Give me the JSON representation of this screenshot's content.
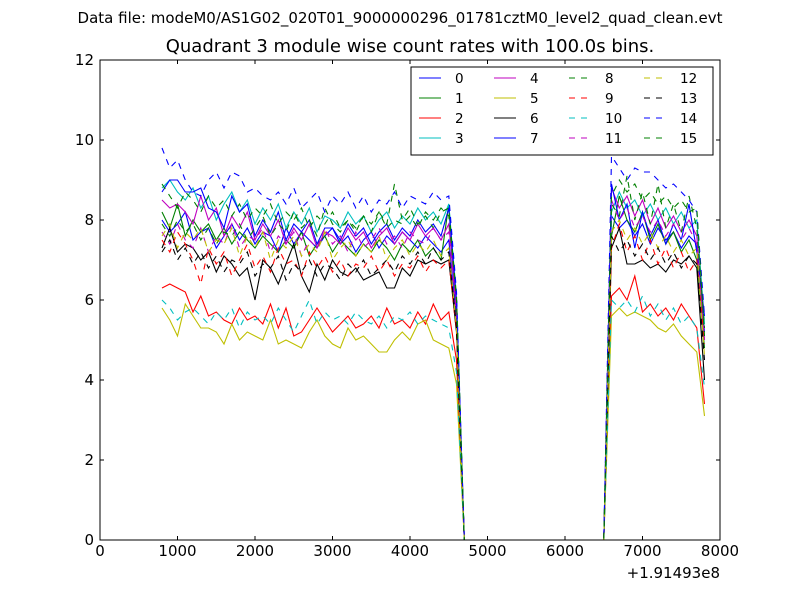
{
  "suptitle": "Data file: modeM0/AS1G02_020T01_9000000296_01781cztM0_level2_quad_clean.evt",
  "chart_data": {
    "type": "line",
    "title": "Quadrant 3 module wise count rates with 100.0s bins.",
    "xlabel": "",
    "ylabel": "",
    "x_offset_label": "+1.91493e8",
    "xlim": [
      0,
      8000
    ],
    "ylim": [
      0,
      12
    ],
    "xticks": [
      0,
      1000,
      2000,
      3000,
      4000,
      5000,
      6000,
      7000,
      8000
    ],
    "yticks": [
      0,
      2,
      4,
      6,
      8,
      10,
      12
    ],
    "legend_location": "upper right",
    "x_segment1": [
      800,
      900,
      1000,
      1100,
      1200,
      1300,
      1400,
      1500,
      1600,
      1700,
      1800,
      1900,
      2000,
      2100,
      2200,
      2300,
      2400,
      2500,
      2600,
      2700,
      2800,
      2900,
      3000,
      3100,
      3200,
      3300,
      3400,
      3500,
      3600,
      3700,
      3800,
      3900,
      4000,
      4100,
      4200,
      4300,
      4400,
      4500,
      4600,
      4700
    ],
    "x_gap": [
      5000,
      6000,
      6400
    ],
    "x_segment2": [
      6500,
      6600,
      6700,
      6800,
      6900,
      7000,
      7100,
      7200,
      7300,
      7400,
      7500,
      7600,
      7700,
      7800
    ],
    "series": [
      {
        "name": "0",
        "color": "#0000ff",
        "dash": "solid",
        "seg1": [
          8.0,
          7.7,
          7.9,
          8.2,
          7.5,
          7.7,
          7.8,
          7.3,
          7.6,
          7.9,
          7.5,
          7.8,
          7.4,
          7.7,
          7.6,
          7.2,
          7.8,
          7.4,
          7.7,
          7.5,
          7.3,
          7.6,
          7.8,
          7.4,
          7.6,
          7.2,
          7.5,
          7.7,
          7.3,
          7.6,
          7.4,
          7.7,
          7.5,
          7.3,
          7.6,
          7.4,
          7.2,
          7.5,
          5.5,
          0.0
        ],
        "seg2": [
          0.0,
          8.1,
          7.8,
          8.0,
          7.6,
          7.9,
          7.4,
          7.8,
          7.5,
          7.7,
          7.3,
          7.6,
          7.4,
          5.2
        ]
      },
      {
        "name": "1",
        "color": "#008000",
        "dash": "solid",
        "seg1": [
          8.2,
          7.8,
          8.4,
          7.6,
          8.0,
          7.7,
          7.9,
          7.5,
          7.8,
          7.4,
          7.7,
          7.5,
          7.3,
          7.6,
          7.4,
          7.2,
          7.5,
          7.3,
          7.7,
          7.1,
          7.4,
          7.6,
          7.2,
          7.5,
          7.3,
          7.1,
          7.4,
          7.2,
          7.5,
          7.3,
          7.0,
          7.4,
          7.2,
          7.5,
          7.1,
          7.3,
          7.0,
          8.4,
          5.6,
          0.0
        ],
        "seg2": [
          0.0,
          7.6,
          8.6,
          8.0,
          7.7,
          8.2,
          7.5,
          7.9,
          7.4,
          7.7,
          7.2,
          7.5,
          7.0,
          4.8
        ]
      },
      {
        "name": "2",
        "color": "#ff0000",
        "dash": "solid",
        "seg1": [
          6.3,
          6.4,
          6.3,
          6.2,
          5.7,
          6.1,
          5.6,
          5.7,
          5.5,
          5.4,
          5.8,
          5.5,
          5.6,
          5.4,
          5.9,
          5.3,
          5.8,
          5.1,
          5.2,
          5.5,
          5.8,
          5.5,
          5.2,
          5.4,
          5.6,
          5.3,
          5.4,
          5.6,
          5.3,
          5.8,
          5.4,
          5.5,
          5.3,
          5.7,
          5.4,
          5.9,
          5.5,
          5.7,
          4.5,
          0.0
        ],
        "seg2": [
          0.0,
          6.1,
          6.3,
          6.0,
          6.6,
          5.7,
          5.9,
          5.6,
          5.8,
          5.5,
          5.9,
          5.6,
          5.3,
          3.4
        ]
      },
      {
        "name": "3",
        "color": "#00bfbf",
        "dash": "solid",
        "seg1": [
          8.8,
          9.0,
          8.7,
          8.5,
          8.8,
          8.3,
          8.6,
          8.0,
          8.4,
          8.7,
          8.2,
          8.5,
          7.9,
          8.3,
          8.0,
          8.4,
          7.8,
          8.2,
          7.9,
          8.3,
          7.7,
          8.1,
          8.0,
          7.8,
          8.2,
          7.9,
          8.1,
          7.7,
          8.0,
          8.2,
          7.8,
          8.1,
          7.9,
          8.3,
          8.0,
          8.2,
          7.9,
          8.4,
          6.0,
          0.0
        ],
        "seg2": [
          0.0,
          8.2,
          8.7,
          8.3,
          8.5,
          8.1,
          8.4,
          8.0,
          8.3,
          7.9,
          8.2,
          7.8,
          8.0,
          5.4
        ]
      },
      {
        "name": "4",
        "color": "#bf00bf",
        "dash": "solid",
        "seg1": [
          8.5,
          8.3,
          8.4,
          8.2,
          7.9,
          8.6,
          8.0,
          8.3,
          7.6,
          8.1,
          7.8,
          8.2,
          7.5,
          7.9,
          7.6,
          8.0,
          7.4,
          7.8,
          7.5,
          7.9,
          7.3,
          7.7,
          7.6,
          7.4,
          7.8,
          7.5,
          7.7,
          7.3,
          7.6,
          7.8,
          7.4,
          7.7,
          7.5,
          7.9,
          7.6,
          7.8,
          7.5,
          7.9,
          5.8,
          0.0
        ],
        "seg2": [
          0.0,
          8.8,
          8.3,
          8.6,
          8.1,
          8.5,
          7.9,
          8.3,
          7.8,
          8.1,
          7.7,
          8.0,
          7.6,
          5.0
        ]
      },
      {
        "name": "5",
        "color": "#bfbf00",
        "dash": "solid",
        "seg1": [
          5.8,
          5.5,
          5.1,
          5.9,
          5.6,
          5.3,
          5.3,
          5.2,
          4.9,
          5.4,
          5.0,
          5.2,
          5.1,
          5.0,
          5.5,
          4.9,
          5.0,
          4.9,
          4.8,
          5.2,
          5.5,
          5.1,
          4.9,
          4.8,
          5.3,
          5.0,
          5.1,
          4.9,
          4.7,
          4.7,
          5.0,
          5.2,
          5.0,
          5.4,
          5.5,
          5.0,
          4.9,
          4.8,
          3.9,
          0.0
        ],
        "seg2": [
          0.0,
          5.6,
          5.8,
          5.6,
          5.7,
          5.6,
          5.5,
          5.3,
          5.2,
          5.4,
          5.1,
          4.9,
          4.7,
          3.1
        ]
      },
      {
        "name": "6",
        "color": "#000000",
        "dash": "solid",
        "seg1": [
          7.3,
          7.8,
          7.2,
          7.4,
          7.3,
          7.0,
          7.2,
          6.7,
          7.1,
          6.9,
          6.6,
          6.8,
          6.0,
          7.0,
          6.8,
          6.4,
          6.9,
          7.4,
          6.6,
          6.2,
          6.9,
          6.5,
          7.0,
          6.7,
          6.6,
          6.8,
          6.5,
          6.6,
          6.7,
          6.3,
          6.3,
          6.8,
          6.6,
          7.0,
          6.9,
          7.0,
          6.9,
          7.0,
          5.2,
          0.0
        ],
        "seg2": [
          0.0,
          7.3,
          7.8,
          6.9,
          6.9,
          7.0,
          6.8,
          6.9,
          6.7,
          7.0,
          6.9,
          7.1,
          6.8,
          4.0
        ]
      },
      {
        "name": "7",
        "color": "#0000ff",
        "dash": "solid",
        "seg1": [
          8.7,
          9.0,
          9.0,
          8.7,
          8.7,
          8.8,
          8.3,
          8.2,
          7.8,
          8.6,
          8.2,
          8.4,
          7.6,
          8.0,
          7.7,
          8.2,
          7.5,
          7.9,
          7.7,
          8.0,
          7.4,
          7.8,
          7.8,
          7.5,
          7.9,
          7.6,
          7.8,
          7.4,
          7.7,
          7.9,
          7.5,
          7.8,
          7.6,
          8.0,
          7.7,
          7.9,
          7.6,
          8.3,
          6.0,
          0.0
        ],
        "seg2": [
          0.0,
          8.9,
          8.0,
          8.4,
          7.3,
          8.2,
          7.6,
          8.0,
          7.4,
          7.9,
          7.5,
          8.4,
          7.2,
          5.6
        ]
      },
      {
        "name": "8",
        "color": "#008000",
        "dash": "dashed",
        "seg1": [
          7.9,
          7.6,
          8.0,
          7.7,
          7.9,
          7.5,
          7.8,
          7.4,
          7.7,
          7.6,
          7.9,
          7.5,
          7.8,
          8.1,
          7.6,
          7.9,
          7.7,
          8.2,
          7.8,
          8.0,
          7.6,
          8.3,
          7.9,
          7.7,
          8.0,
          7.8,
          8.1,
          7.7,
          8.2,
          7.9,
          8.9,
          8.0,
          8.3,
          7.9,
          8.1,
          7.8,
          8.2,
          8.3,
          6.1,
          0.0
        ],
        "seg2": [
          0.0,
          8.4,
          8.1,
          9.1,
          8.0,
          8.7,
          7.9,
          8.9,
          7.8,
          8.4,
          7.7,
          8.6,
          7.8,
          5.3
        ]
      },
      {
        "name": "9",
        "color": "#ff0000",
        "dash": "dashed",
        "seg1": [
          7.5,
          7.2,
          7.7,
          7.4,
          7.0,
          6.4,
          7.3,
          6.9,
          7.2,
          6.6,
          7.0,
          7.4,
          6.8,
          7.1,
          6.7,
          7.3,
          6.9,
          7.0,
          6.6,
          7.2,
          6.8,
          7.1,
          6.7,
          7.0,
          6.6,
          6.9,
          6.8,
          7.1,
          6.7,
          7.0,
          6.6,
          6.9,
          6.8,
          7.1,
          6.7,
          7.0,
          6.8,
          7.0,
          5.2,
          0.0
        ],
        "seg2": [
          0.0,
          7.3,
          7.9,
          7.2,
          7.6,
          7.0,
          7.5,
          6.9,
          7.3,
          6.8,
          7.2,
          6.7,
          7.0,
          4.9
        ]
      },
      {
        "name": "10",
        "color": "#00bfbf",
        "dash": "dashed",
        "seg1": [
          6.0,
          5.8,
          5.5,
          5.7,
          5.8,
          5.6,
          5.4,
          5.7,
          5.5,
          5.8,
          5.3,
          5.7,
          5.5,
          5.6,
          5.4,
          5.8,
          5.5,
          5.2,
          5.6,
          6.0,
          5.4,
          5.7,
          5.5,
          5.6,
          5.4,
          5.7,
          5.5,
          5.4,
          5.6,
          5.3,
          5.6,
          5.5,
          5.7,
          5.4,
          5.6,
          5.5,
          5.4,
          5.3,
          4.2,
          0.0
        ],
        "seg2": [
          0.0,
          6.0,
          5.8,
          6.0,
          5.7,
          6.1,
          5.6,
          5.9,
          5.5,
          5.8,
          5.4,
          5.6,
          5.3,
          3.8
        ]
      },
      {
        "name": "11",
        "color": "#bf00bf",
        "dash": "dashed",
        "seg1": [
          7.7,
          7.4,
          7.9,
          7.5,
          7.3,
          7.8,
          7.2,
          7.6,
          7.4,
          7.9,
          7.3,
          7.6,
          7.5,
          7.8,
          7.2,
          7.6,
          7.4,
          7.7,
          7.1,
          7.5,
          7.3,
          7.8,
          7.4,
          7.6,
          7.2,
          7.7,
          7.3,
          7.5,
          7.8,
          7.4,
          7.6,
          7.3,
          7.7,
          7.5,
          7.4,
          7.8,
          7.5,
          7.7,
          5.6,
          0.0
        ],
        "seg2": [
          0.0,
          8.5,
          8.0,
          8.3,
          7.8,
          8.1,
          7.7,
          8.0,
          7.6,
          7.9,
          7.5,
          7.8,
          7.4,
          5.0
        ]
      },
      {
        "name": "12",
        "color": "#bfbf00",
        "dash": "dashed",
        "seg1": [
          7.6,
          7.9,
          7.3,
          7.7,
          7.5,
          7.8,
          7.2,
          7.5,
          7.4,
          7.8,
          7.1,
          7.6,
          7.3,
          7.7,
          7.0,
          7.5,
          7.3,
          7.6,
          7.1,
          7.4,
          7.2,
          7.7,
          7.0,
          7.3,
          7.5,
          7.1,
          7.4,
          7.2,
          7.6,
          7.0,
          7.3,
          7.5,
          7.1,
          7.4,
          7.2,
          7.5,
          7.1,
          7.3,
          5.3,
          0.0
        ],
        "seg2": [
          0.0,
          7.7,
          8.0,
          7.5,
          7.8,
          7.4,
          7.7,
          7.3,
          7.6,
          7.2,
          7.5,
          7.1,
          7.3,
          4.6
        ]
      },
      {
        "name": "13",
        "color": "#000000",
        "dash": "dashed",
        "seg1": [
          7.2,
          7.5,
          7.0,
          7.3,
          6.9,
          7.2,
          6.8,
          7.1,
          6.7,
          7.0,
          6.9,
          7.2,
          6.6,
          6.9,
          6.8,
          7.1,
          6.5,
          6.9,
          6.7,
          7.0,
          6.6,
          6.9,
          6.8,
          6.5,
          6.9,
          6.7,
          7.0,
          6.6,
          6.8,
          7.0,
          6.7,
          7.1,
          6.9,
          7.2,
          6.9,
          7.3,
          7.0,
          7.2,
          5.3,
          0.0
        ],
        "seg2": [
          0.0,
          7.6,
          7.2,
          7.5,
          7.1,
          7.4,
          7.0,
          7.3,
          6.9,
          7.2,
          6.8,
          7.1,
          6.9,
          4.5
        ]
      },
      {
        "name": "14",
        "color": "#0000ff",
        "dash": "dashed",
        "seg1": [
          9.8,
          9.3,
          9.5,
          9.0,
          8.7,
          8.6,
          9.0,
          9.2,
          8.8,
          9.2,
          9.1,
          8.7,
          8.8,
          8.6,
          8.5,
          8.7,
          8.4,
          8.8,
          8.3,
          8.5,
          8.7,
          8.2,
          8.6,
          8.4,
          8.7,
          8.3,
          8.6,
          8.2,
          8.5,
          8.4,
          8.7,
          8.3,
          8.6,
          8.5,
          8.4,
          8.7,
          8.5,
          8.6,
          6.2,
          0.0
        ],
        "seg2": [
          0.0,
          9.6,
          9.3,
          9.0,
          9.3,
          9.2,
          9.2,
          9.0,
          8.8,
          8.9,
          8.7,
          8.5,
          8.2,
          5.6
        ]
      },
      {
        "name": "15",
        "color": "#008000",
        "dash": "dashed",
        "seg1": [
          8.9,
          8.6,
          8.3,
          8.7,
          8.5,
          8.2,
          8.6,
          8.3,
          8.5,
          8.1,
          8.4,
          8.0,
          8.3,
          8.1,
          8.4,
          7.9,
          8.2,
          8.0,
          8.3,
          7.8,
          8.1,
          7.9,
          8.2,
          7.8,
          8.0,
          7.7,
          8.1,
          7.9,
          8.2,
          7.8,
          8.0,
          7.9,
          8.1,
          7.8,
          8.2,
          8.0,
          8.3,
          8.1,
          6.0,
          0.0
        ],
        "seg2": [
          0.0,
          8.6,
          9.0,
          8.7,
          8.9,
          8.5,
          8.7,
          8.4,
          8.6,
          8.3,
          8.5,
          8.2,
          8.3,
          5.1
        ]
      }
    ]
  }
}
